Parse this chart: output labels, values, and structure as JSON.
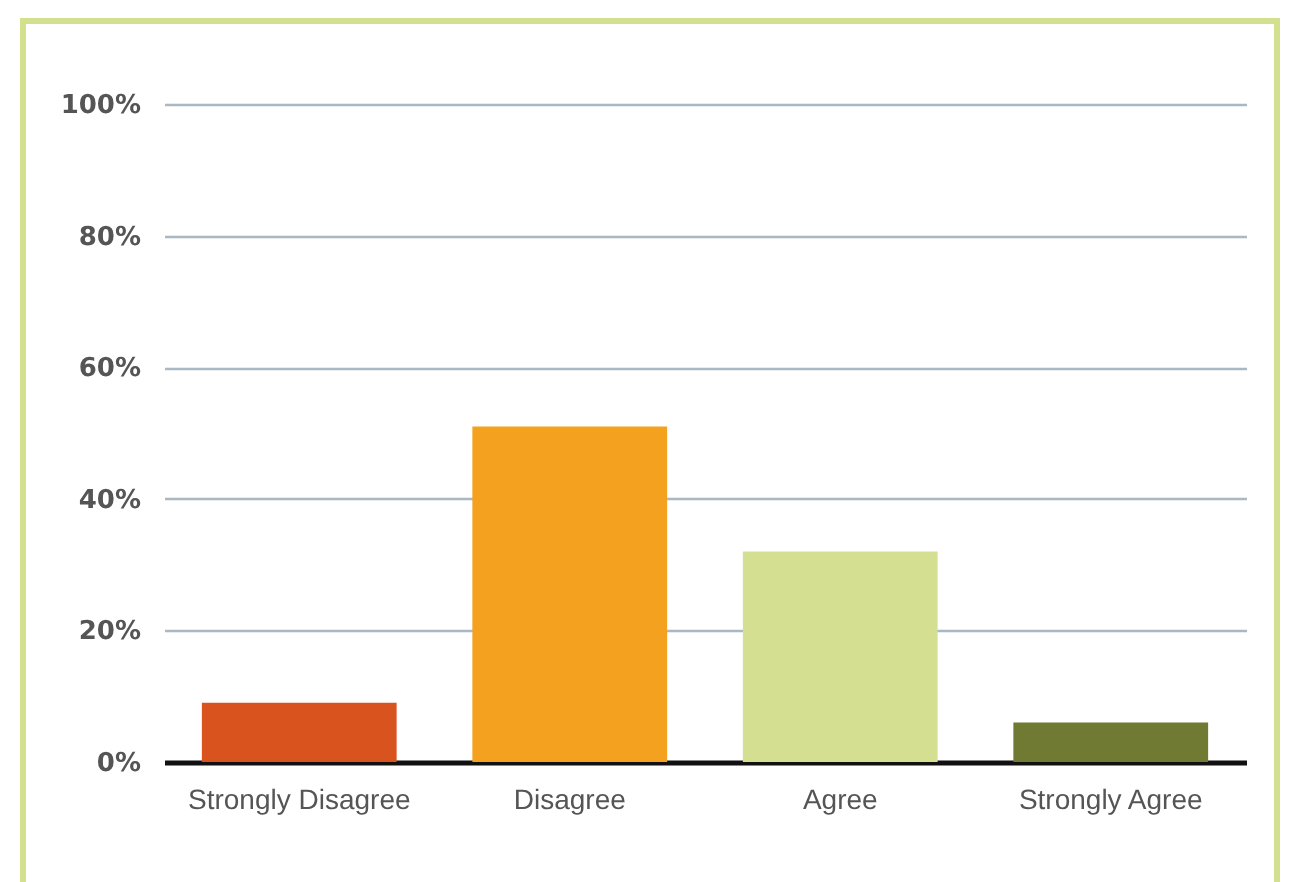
{
  "chart_data": {
    "type": "bar",
    "categories": [
      "Strongly Disagree",
      "Disagree",
      "Agree",
      "Strongly Agree"
    ],
    "values": [
      9,
      51,
      32,
      6
    ],
    "colors": [
      "#d9531e",
      "#f4a11f",
      "#d5df91",
      "#717a33"
    ],
    "ylim": [
      0,
      100
    ],
    "yticks": [
      {
        "value": 0,
        "label": "0%"
      },
      {
        "value": 20,
        "label": "20%"
      },
      {
        "value": 40,
        "label": "40%"
      },
      {
        "value": 60,
        "label": "60%"
      },
      {
        "value": 80,
        "label": "80%"
      },
      {
        "value": 100,
        "label": "100%"
      }
    ],
    "grid": "y",
    "legend": false
  }
}
